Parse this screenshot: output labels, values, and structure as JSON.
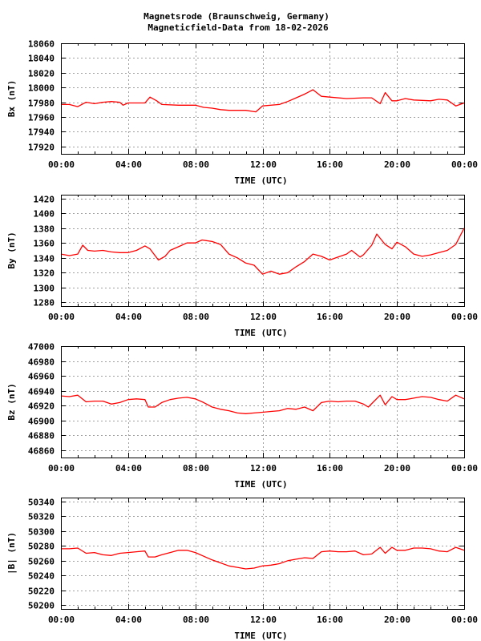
{
  "title_line1": "Magnetsrode (Braunschweig, Germany)",
  "title_line2": "Magneticfield-Data from 18-02-2026",
  "colors": {
    "series": "#ff0000",
    "grid": "#a0a0a0",
    "frame": "#000000"
  },
  "chart_data": [
    {
      "type": "line",
      "xlabel": "TIME (UTC)",
      "ylabel": "Bx (nT)",
      "xlim": [
        0,
        24
      ],
      "ylim": [
        17910,
        18060
      ],
      "grid": true,
      "xticks": [
        "00:00",
        "04:00",
        "08:00",
        "12:00",
        "16:00",
        "20:00",
        "00:00"
      ],
      "yticks": [
        17920,
        17940,
        17960,
        17980,
        18000,
        18020,
        18040,
        18060
      ],
      "x": [
        0,
        0.5,
        1,
        1.5,
        2,
        2.5,
        3,
        3.5,
        3.7,
        4,
        4.5,
        5,
        5.3,
        5.7,
        6,
        7,
        8,
        8.5,
        9,
        9.5,
        10,
        11,
        11.6,
        12,
        13,
        13.5,
        14,
        14.5,
        15,
        15.5,
        16,
        17,
        18,
        18.5,
        19,
        19.3,
        19.7,
        20,
        20.5,
        21,
        22,
        22.5,
        23,
        23.5,
        24
      ],
      "y": [
        17977,
        17977,
        17974,
        17980,
        17978,
        17980,
        17981,
        17980,
        17976,
        17979,
        17979,
        17979,
        17987,
        17982,
        17977,
        17976,
        17976,
        17973,
        17972,
        17970,
        17969,
        17969,
        17967,
        17975,
        17977,
        17981,
        17986,
        17991,
        17997,
        17988,
        17987,
        17985,
        17986,
        17986,
        17978,
        17993,
        17982,
        17982,
        17985,
        17983,
        17982,
        17984,
        17983,
        17975,
        17979
      ]
    },
    {
      "type": "line",
      "xlabel": "TIME (UTC)",
      "ylabel": "By (nT)",
      "xlim": [
        0,
        24
      ],
      "ylim": [
        1275,
        1425
      ],
      "grid": true,
      "xticks": [
        "00:00",
        "04:00",
        "08:00",
        "12:00",
        "16:00",
        "20:00",
        "00:00"
      ],
      "yticks": [
        1280,
        1300,
        1320,
        1340,
        1360,
        1380,
        1400,
        1420
      ],
      "x": [
        0,
        0.5,
        1,
        1.3,
        1.6,
        2,
        2.5,
        3,
        3.5,
        4,
        4.5,
        5,
        5.3,
        5.8,
        6.2,
        6.5,
        7,
        7.5,
        8,
        8.4,
        9,
        9.5,
        10,
        10.5,
        11,
        11.5,
        12,
        12.5,
        13,
        13.5,
        14,
        14.5,
        15,
        15.5,
        16,
        16.5,
        17,
        17.3,
        17.8,
        18,
        18.5,
        18.8,
        19.3,
        19.7,
        20,
        20.5,
        21,
        21.5,
        22,
        22.5,
        23,
        23.5,
        24
      ],
      "y": [
        1345,
        1343,
        1345,
        1357,
        1350,
        1349,
        1350,
        1348,
        1347,
        1347,
        1350,
        1356,
        1352,
        1337,
        1342,
        1350,
        1355,
        1360,
        1360,
        1364,
        1362,
        1358,
        1345,
        1340,
        1333,
        1330,
        1318,
        1322,
        1318,
        1320,
        1328,
        1335,
        1345,
        1342,
        1337,
        1341,
        1345,
        1350,
        1341,
        1344,
        1357,
        1372,
        1358,
        1352,
        1361,
        1355,
        1345,
        1342,
        1344,
        1347,
        1350,
        1358,
        1380
      ]
    },
    {
      "type": "line",
      "xlabel": "TIME (UTC)",
      "ylabel": "Bz (nT)",
      "xlim": [
        0,
        24
      ],
      "ylim": [
        46850,
        47000
      ],
      "grid": true,
      "xticks": [
        "00:00",
        "04:00",
        "08:00",
        "12:00",
        "16:00",
        "20:00",
        "00:00"
      ],
      "yticks": [
        46860,
        46880,
        46900,
        46920,
        46940,
        46960,
        46980,
        47000
      ],
      "x": [
        0,
        0.5,
        1,
        1.5,
        2,
        2.5,
        3,
        3.5,
        4,
        4.5,
        5,
        5.2,
        5.6,
        6,
        6.5,
        7,
        7.5,
        8,
        8.5,
        9,
        9.5,
        10,
        10.5,
        11,
        11.5,
        12,
        12.5,
        13,
        13.5,
        14,
        14.5,
        15,
        15.5,
        16,
        16.5,
        17,
        17.5,
        18,
        18.3,
        19,
        19.3,
        19.7,
        20,
        20.5,
        21,
        21.5,
        22,
        22.5,
        23,
        23.5,
        24
      ],
      "y": [
        46933,
        46932,
        46934,
        46925,
        46926,
        46926,
        46922,
        46924,
        46928,
        46929,
        46928,
        46918,
        46918,
        46924,
        46928,
        46930,
        46931,
        46929,
        46924,
        46918,
        46915,
        46913,
        46910,
        46909,
        46910,
        46911,
        46912,
        46913,
        46916,
        46915,
        46918,
        46913,
        46924,
        46926,
        46925,
        46926,
        46926,
        46922,
        46918,
        46934,
        46921,
        46932,
        46928,
        46928,
        46930,
        46932,
        46931,
        46928,
        46926,
        46934,
        46929
      ]
    },
    {
      "type": "line",
      "xlabel": "TIME (UTC)",
      "ylabel": "|B| (nT)",
      "xlim": [
        0,
        24
      ],
      "ylim": [
        50195,
        50345
      ],
      "grid": true,
      "xticks": [
        "00:00",
        "04:00",
        "08:00",
        "12:00",
        "16:00",
        "20:00",
        "00:00"
      ],
      "yticks": [
        50200,
        50220,
        50240,
        50260,
        50280,
        50300,
        50320,
        50340
      ],
      "x": [
        0,
        0.5,
        1,
        1.5,
        2,
        2.5,
        3,
        3.5,
        4,
        4.5,
        5,
        5.2,
        5.6,
        6,
        6.5,
        7,
        7.5,
        8,
        8.5,
        9,
        9.5,
        10,
        10.5,
        11,
        11.5,
        12,
        12.5,
        13,
        13.5,
        14,
        14.5,
        15,
        15.5,
        16,
        16.5,
        17,
        17.5,
        18,
        18.5,
        19,
        19.3,
        19.7,
        20,
        20.5,
        21,
        21.5,
        22,
        22.5,
        23,
        23.5,
        24
      ],
      "y": [
        50276,
        50276,
        50277,
        50270,
        50271,
        50268,
        50267,
        50270,
        50271,
        50272,
        50273,
        50265,
        50265,
        50268,
        50271,
        50274,
        50274,
        50271,
        50266,
        50261,
        50257,
        50253,
        50251,
        50249,
        50250,
        50253,
        50254,
        50256,
        50260,
        50262,
        50264,
        50263,
        50272,
        50273,
        50272,
        50272,
        50273,
        50268,
        50269,
        50278,
        50270,
        50278,
        50274,
        50274,
        50277,
        50277,
        50276,
        50273,
        50272,
        50278,
        50274
      ]
    }
  ]
}
